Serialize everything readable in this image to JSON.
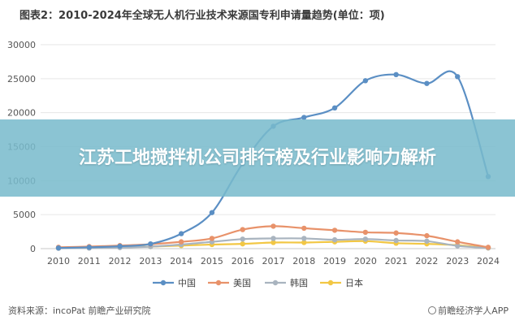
{
  "page": {
    "title": "图表2：2010-2024年全球无人机行业技术来源国专利申请量趋势(单位：项)",
    "banner_text": "江苏工地搅拌机公司排行榜及行业影响力解析",
    "source_text": "资料来源：incoPat 前瞻产业研究院",
    "brand_text": "前瞻经济学人APP"
  },
  "chart_data": {
    "type": "line",
    "title": "图表2：2010-2024年全球无人机行业技术来源国专利申请量趋势(单位：项)",
    "xlabel": "",
    "ylabel": "",
    "x": [
      "2010",
      "2011",
      "2012",
      "2013",
      "2014",
      "2015",
      "2016",
      "2017",
      "2018",
      "2019",
      "2020",
      "2021",
      "2022",
      "2023",
      "2024"
    ],
    "ylim": [
      0,
      30000
    ],
    "yticks": [
      0,
      5000,
      10000,
      15000,
      20000,
      25000,
      30000
    ],
    "grid": true,
    "legend_position": "bottom",
    "series": [
      {
        "name": "中国",
        "color": "#5b8fc4",
        "values": [
          100,
          200,
          350,
          700,
          2200,
          5300,
          12500,
          18000,
          19300,
          20700,
          24700,
          25600,
          24300,
          25300,
          10600
        ]
      },
      {
        "name": "美国",
        "color": "#e8926a",
        "values": [
          200,
          300,
          450,
          650,
          1000,
          1500,
          2800,
          3300,
          3000,
          2700,
          2400,
          2300,
          1900,
          1000,
          200
        ]
      },
      {
        "name": "韩国",
        "color": "#a9b4bf",
        "values": [
          50,
          80,
          150,
          300,
          600,
          1000,
          1400,
          1500,
          1500,
          1300,
          1400,
          1200,
          1100,
          400,
          100
        ]
      },
      {
        "name": "日本",
        "color": "#f2c744",
        "values": [
          80,
          120,
          200,
          300,
          450,
          600,
          700,
          900,
          900,
          1000,
          1100,
          800,
          700,
          500,
          100
        ]
      }
    ]
  }
}
